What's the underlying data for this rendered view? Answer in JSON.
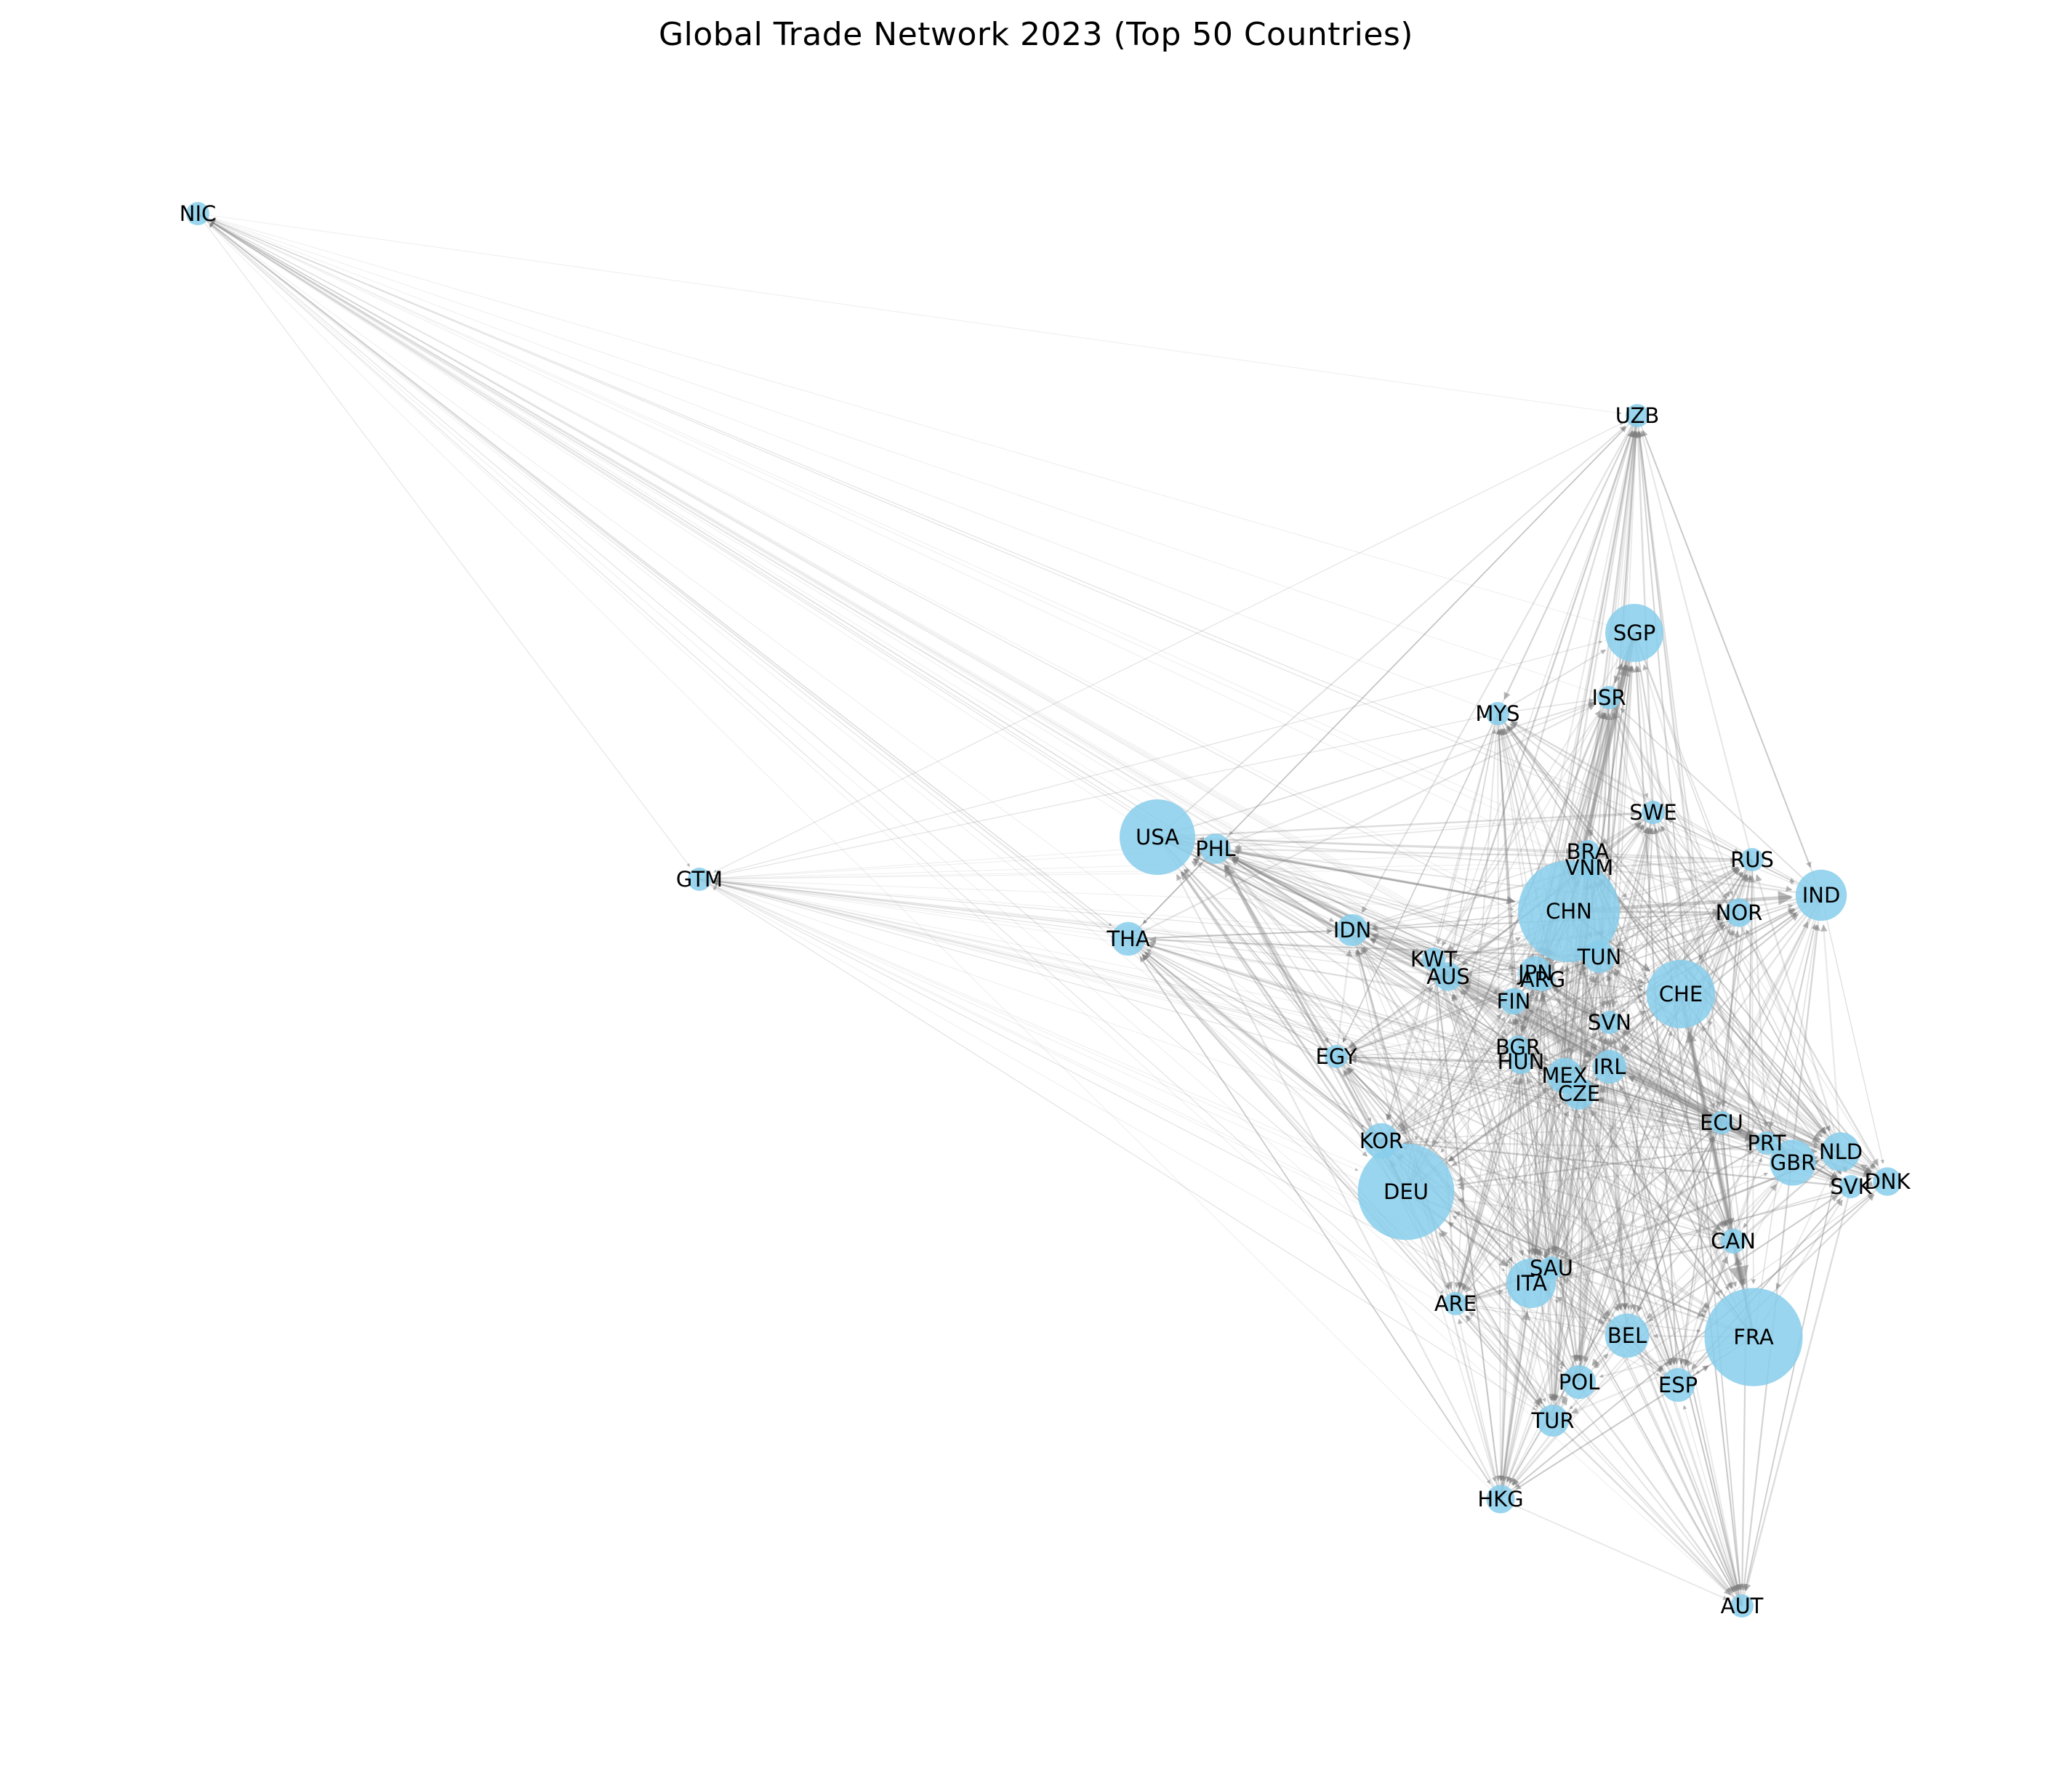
{
  "title": "Global Trade Network 2023 (Top 50 Countries)",
  "colors": {
    "node_fill": "#87ceeb",
    "edge": "#808080",
    "text": "#000000"
  },
  "nodes": [
    {
      "id": "NIC",
      "label": "NIC",
      "size": 1
    },
    {
      "id": "GTM",
      "label": "GTM",
      "size": 1
    },
    {
      "id": "UZB",
      "label": "UZB",
      "size": 1
    },
    {
      "id": "SGP",
      "label": "SGP",
      "size": 3
    },
    {
      "id": "ISR",
      "label": "ISR",
      "size": 1
    },
    {
      "id": "MYS",
      "label": "MYS",
      "size": 1
    },
    {
      "id": "SWE",
      "label": "SWE",
      "size": 1
    },
    {
      "id": "USA",
      "label": "USA",
      "size": 4
    },
    {
      "id": "PHL",
      "label": "PHL",
      "size": 1.4
    },
    {
      "id": "BRA",
      "label": "BRA",
      "size": 1
    },
    {
      "id": "VNM",
      "label": "VNM",
      "size": 1
    },
    {
      "id": "RUS",
      "label": "RUS",
      "size": 1
    },
    {
      "id": "IND",
      "label": "IND",
      "size": 2.6
    },
    {
      "id": "CHN",
      "label": "CHN",
      "size": 5.5
    },
    {
      "id": "NOR",
      "label": "NOR",
      "size": 1.3
    },
    {
      "id": "THA",
      "label": "THA",
      "size": 1.6
    },
    {
      "id": "IDN",
      "label": "IDN",
      "size": 1.5
    },
    {
      "id": "KWT",
      "label": "KWT",
      "size": 1
    },
    {
      "id": "TUN",
      "label": "TUN",
      "size": 1.5
    },
    {
      "id": "JPN",
      "label": "JPN",
      "size": 1.6
    },
    {
      "id": "AUS",
      "label": "AUS",
      "size": 1.3
    },
    {
      "id": "ARG",
      "label": "ARG",
      "size": 1
    },
    {
      "id": "CHE",
      "label": "CHE",
      "size": 3.6
    },
    {
      "id": "FIN",
      "label": "FIN",
      "size": 1.2
    },
    {
      "id": "SVN",
      "label": "SVN",
      "size": 1
    },
    {
      "id": "EGY",
      "label": "EGY",
      "size": 1
    },
    {
      "id": "BGR",
      "label": "BGR",
      "size": 1
    },
    {
      "id": "HUN",
      "label": "HUN",
      "size": 1.1
    },
    {
      "id": "IRL",
      "label": "IRL",
      "size": 1.6
    },
    {
      "id": "MEX",
      "label": "MEX",
      "size": 1.7
    },
    {
      "id": "CZE",
      "label": "CZE",
      "size": 1.5
    },
    {
      "id": "ECU",
      "label": "ECU",
      "size": 1
    },
    {
      "id": "PRT",
      "label": "PRT",
      "size": 1
    },
    {
      "id": "NLD",
      "label": "NLD",
      "size": 1.9
    },
    {
      "id": "KOR",
      "label": "KOR",
      "size": 1.7
    },
    {
      "id": "GBR",
      "label": "GBR",
      "size": 2.3
    },
    {
      "id": "DNK",
      "label": "DNK",
      "size": 1.3
    },
    {
      "id": "SVK",
      "label": "SVK",
      "size": 1
    },
    {
      "id": "DEU",
      "label": "DEU",
      "size": 5.2
    },
    {
      "id": "CAN",
      "label": "CAN",
      "size": 1.1
    },
    {
      "id": "SAU",
      "label": "SAU",
      "size": 1
    },
    {
      "id": "ITA",
      "label": "ITA",
      "size": 2.5
    },
    {
      "id": "ARE",
      "label": "ARE",
      "size": 1
    },
    {
      "id": "BEL",
      "label": "BEL",
      "size": 2.2
    },
    {
      "id": "FRA",
      "label": "FRA",
      "size": 5.3
    },
    {
      "id": "POL",
      "label": "POL",
      "size": 1.6
    },
    {
      "id": "ESP",
      "label": "ESP",
      "size": 1.6
    },
    {
      "id": "TUR",
      "label": "TUR",
      "size": 1.5
    },
    {
      "id": "HKG",
      "label": "HKG",
      "size": 1.3
    },
    {
      "id": "AUT",
      "label": "AUT",
      "size": 1
    }
  ]
}
